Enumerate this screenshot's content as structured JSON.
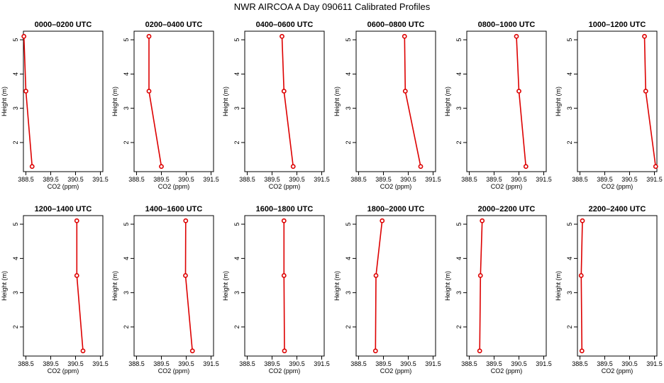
{
  "figure_title": "NWR AIRCOA A  Day 090611  Calibrated Profiles",
  "chart_data": [
    {
      "type": "line",
      "title": "0000–0200 UTC",
      "xlabel": "CO2 (ppm)",
      "ylabel": "Height (m)",
      "xlim": [
        388.4,
        391.6
      ],
      "ylim": [
        1.15,
        5.25
      ],
      "x_ticks": [
        388.5,
        389.5,
        390.5,
        391.5
      ],
      "x_tick_labels": [
        "388.5",
        "389.5",
        "390.5",
        "391.5"
      ],
      "y_ticks": [
        2,
        3,
        4,
        5
      ],
      "y_tick_labels": [
        "2",
        "3",
        "4",
        "5"
      ],
      "series": [
        {
          "x": [
            388.42,
            388.5,
            388.75
          ],
          "y": [
            5.1,
            3.5,
            1.3
          ]
        }
      ]
    },
    {
      "type": "line",
      "title": "0200–0400 UTC",
      "xlabel": "CO2 (ppm)",
      "ylabel": "Height (m)",
      "xlim": [
        388.4,
        391.6
      ],
      "ylim": [
        1.15,
        5.25
      ],
      "x_ticks": [
        388.5,
        389.5,
        390.5,
        391.5
      ],
      "x_tick_labels": [
        "388.5",
        "389.5",
        "390.5",
        "391.5"
      ],
      "y_ticks": [
        2,
        3,
        4,
        5
      ],
      "y_tick_labels": [
        "2",
        "3",
        "4",
        "5"
      ],
      "series": [
        {
          "x": [
            389.0,
            389.0,
            389.5
          ],
          "y": [
            5.1,
            3.5,
            1.3
          ]
        }
      ]
    },
    {
      "type": "line",
      "title": "0400–0600 UTC",
      "xlabel": "CO2 (ppm)",
      "ylabel": "Height (m)",
      "xlim": [
        388.4,
        391.6
      ],
      "ylim": [
        1.15,
        5.25
      ],
      "x_ticks": [
        388.5,
        389.5,
        390.5,
        391.5
      ],
      "x_tick_labels": [
        "388.5",
        "389.5",
        "390.5",
        "391.5"
      ],
      "y_ticks": [
        2,
        3,
        4,
        5
      ],
      "y_tick_labels": [
        "2",
        "3",
        "4",
        "5"
      ],
      "series": [
        {
          "x": [
            389.9,
            389.98,
            390.35
          ],
          "y": [
            5.1,
            3.5,
            1.3
          ]
        }
      ]
    },
    {
      "type": "line",
      "title": "0600–0800 UTC",
      "xlabel": "CO2 (ppm)",
      "ylabel": "Height (m)",
      "xlim": [
        388.4,
        391.6
      ],
      "ylim": [
        1.15,
        5.25
      ],
      "x_ticks": [
        388.5,
        389.5,
        390.5,
        391.5
      ],
      "x_tick_labels": [
        "388.5",
        "389.5",
        "390.5",
        "391.5"
      ],
      "y_ticks": [
        2,
        3,
        4,
        5
      ],
      "y_tick_labels": [
        "2",
        "3",
        "4",
        "5"
      ],
      "series": [
        {
          "x": [
            390.35,
            390.38,
            391.0
          ],
          "y": [
            5.1,
            3.5,
            1.3
          ]
        }
      ]
    },
    {
      "type": "line",
      "title": "0800–1000 UTC",
      "xlabel": "CO2 (ppm)",
      "ylabel": "Height (m)",
      "xlim": [
        388.4,
        391.6
      ],
      "ylim": [
        1.15,
        5.25
      ],
      "x_ticks": [
        388.5,
        389.5,
        390.5,
        391.5
      ],
      "x_tick_labels": [
        "388.5",
        "389.5",
        "390.5",
        "391.5"
      ],
      "y_ticks": [
        2,
        3,
        4,
        5
      ],
      "y_tick_labels": [
        "2",
        "3",
        "4",
        "5"
      ],
      "series": [
        {
          "x": [
            390.4,
            390.5,
            390.78
          ],
          "y": [
            5.1,
            3.5,
            1.3
          ]
        }
      ]
    },
    {
      "type": "line",
      "title": "1000–1200 UTC",
      "xlabel": "CO2 (ppm)",
      "ylabel": "Height (m)",
      "xlim": [
        388.4,
        391.6
      ],
      "ylim": [
        1.15,
        5.25
      ],
      "x_ticks": [
        388.5,
        389.5,
        390.5,
        391.5
      ],
      "x_tick_labels": [
        "388.5",
        "389.5",
        "390.5",
        "391.5"
      ],
      "y_ticks": [
        2,
        3,
        4,
        5
      ],
      "y_tick_labels": [
        "2",
        "3",
        "4",
        "5"
      ],
      "series": [
        {
          "x": [
            391.1,
            391.15,
            391.55
          ],
          "y": [
            5.1,
            3.5,
            1.3
          ]
        }
      ]
    },
    {
      "type": "line",
      "title": "1200–1400 UTC",
      "xlabel": "CO2 (ppm)",
      "ylabel": "Height (m)",
      "xlim": [
        388.4,
        391.6
      ],
      "ylim": [
        1.15,
        5.25
      ],
      "x_ticks": [
        388.5,
        389.5,
        390.5,
        391.5
      ],
      "x_tick_labels": [
        "388.5",
        "389.5",
        "390.5",
        "391.5"
      ],
      "y_ticks": [
        2,
        3,
        4,
        5
      ],
      "y_tick_labels": [
        "2",
        "3",
        "4",
        "5"
      ],
      "series": [
        {
          "x": [
            390.55,
            390.55,
            390.8
          ],
          "y": [
            5.1,
            3.5,
            1.3
          ]
        }
      ]
    },
    {
      "type": "line",
      "title": "1400–1600 UTC",
      "xlabel": "CO2 (ppm)",
      "ylabel": "Height (m)",
      "xlim": [
        388.4,
        391.6
      ],
      "ylim": [
        1.15,
        5.25
      ],
      "x_ticks": [
        388.5,
        389.5,
        390.5,
        391.5
      ],
      "x_tick_labels": [
        "388.5",
        "389.5",
        "390.5",
        "391.5"
      ],
      "y_ticks": [
        2,
        3,
        4,
        5
      ],
      "y_tick_labels": [
        "2",
        "3",
        "4",
        "5"
      ],
      "series": [
        {
          "x": [
            390.48,
            390.47,
            390.75
          ],
          "y": [
            5.1,
            3.5,
            1.3
          ]
        }
      ]
    },
    {
      "type": "line",
      "title": "1600–1800 UTC",
      "xlabel": "CO2 (ppm)",
      "ylabel": "Height (m)",
      "xlim": [
        388.4,
        391.6
      ],
      "ylim": [
        1.15,
        5.25
      ],
      "x_ticks": [
        388.5,
        389.5,
        390.5,
        391.5
      ],
      "x_tick_labels": [
        "388.5",
        "389.5",
        "390.5",
        "391.5"
      ],
      "y_ticks": [
        2,
        3,
        4,
        5
      ],
      "y_tick_labels": [
        "2",
        "3",
        "4",
        "5"
      ],
      "series": [
        {
          "x": [
            389.98,
            389.98,
            390.0
          ],
          "y": [
            5.1,
            3.5,
            1.3
          ]
        }
      ]
    },
    {
      "type": "line",
      "title": "1800–2000 UTC",
      "xlabel": "CO2 (ppm)",
      "ylabel": "Height (m)",
      "xlim": [
        388.4,
        391.6
      ],
      "ylim": [
        1.15,
        5.25
      ],
      "x_ticks": [
        388.5,
        389.5,
        390.5,
        391.5
      ],
      "x_tick_labels": [
        "388.5",
        "389.5",
        "390.5",
        "391.5"
      ],
      "y_ticks": [
        2,
        3,
        4,
        5
      ],
      "y_tick_labels": [
        "2",
        "3",
        "4",
        "5"
      ],
      "series": [
        {
          "x": [
            389.45,
            389.2,
            389.18
          ],
          "y": [
            5.1,
            3.5,
            1.3
          ]
        }
      ]
    },
    {
      "type": "line",
      "title": "2000–2200 UTC",
      "xlabel": "CO2 (ppm)",
      "ylabel": "Height (m)",
      "xlim": [
        388.4,
        391.6
      ],
      "ylim": [
        1.15,
        5.25
      ],
      "x_ticks": [
        388.5,
        389.5,
        390.5,
        391.5
      ],
      "x_tick_labels": [
        "388.5",
        "389.5",
        "390.5",
        "391.5"
      ],
      "y_ticks": [
        2,
        3,
        4,
        5
      ],
      "y_tick_labels": [
        "2",
        "3",
        "4",
        "5"
      ],
      "series": [
        {
          "x": [
            389.02,
            388.95,
            388.92
          ],
          "y": [
            5.1,
            3.5,
            1.3
          ]
        }
      ]
    },
    {
      "type": "line",
      "title": "2200–2400 UTC",
      "xlabel": "CO2 (ppm)",
      "ylabel": "Height (m)",
      "xlim": [
        388.4,
        391.6
      ],
      "ylim": [
        1.15,
        5.25
      ],
      "x_ticks": [
        388.5,
        389.5,
        390.5,
        391.5
      ],
      "x_tick_labels": [
        "388.5",
        "389.5",
        "390.5",
        "391.5"
      ],
      "y_ticks": [
        2,
        3,
        4,
        5
      ],
      "y_tick_labels": [
        "2",
        "3",
        "4",
        "5"
      ],
      "series": [
        {
          "x": [
            388.6,
            388.55,
            388.58
          ],
          "y": [
            5.1,
            3.5,
            1.3
          ]
        }
      ]
    }
  ],
  "colors": {
    "series": "#dd0000",
    "point_fill": "#ffffff",
    "axis": "#000000",
    "background": "#ffffff"
  }
}
